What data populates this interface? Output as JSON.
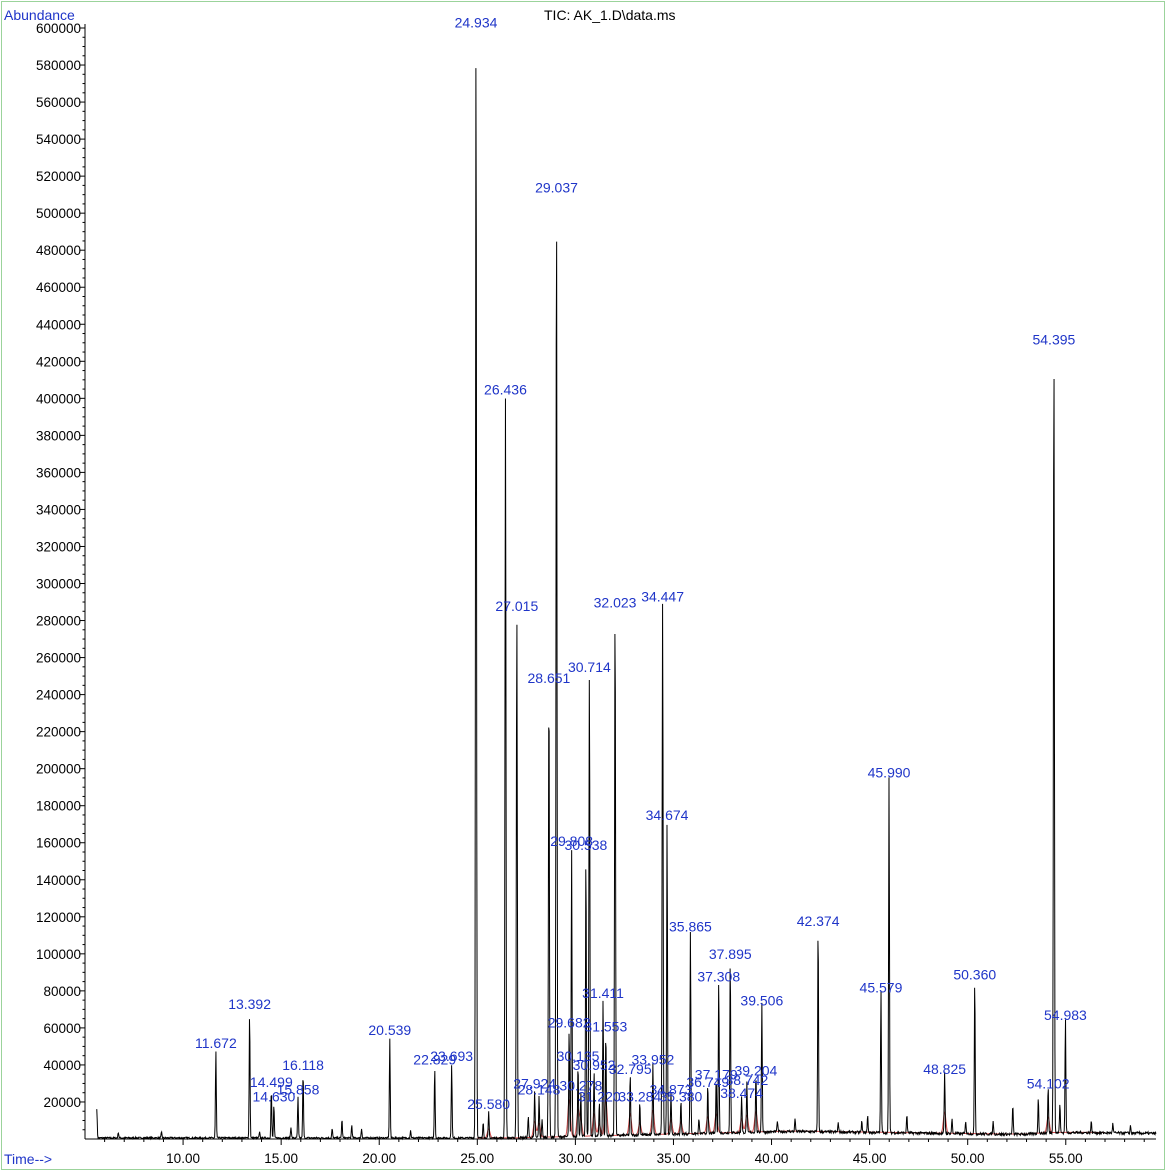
{
  "colors": {
    "frame": "#9bd39b",
    "axis_label": "#1f35c8",
    "peak_label": "#1f35c8",
    "trace": "#000000",
    "baseline": "#cc2222",
    "text": "#000000"
  },
  "chart_data": {
    "type": "line",
    "title": "TIC: AK_1.D\\data.ms",
    "xlabel": "Time-->",
    "ylabel": "Abundance",
    "xlim": [
      5.0,
      59.6
    ],
    "ylim": [
      0,
      600000
    ],
    "x_ticks": [
      10,
      15,
      20,
      25,
      30,
      35,
      40,
      45,
      50,
      55
    ],
    "x_tick_labels": [
      "10.00",
      "15.00",
      "20.00",
      "25.00",
      "30.00",
      "35.00",
      "40.00",
      "45.00",
      "50.00",
      "55.00"
    ],
    "y_ticks": [
      20000,
      40000,
      60000,
      80000,
      100000,
      120000,
      140000,
      160000,
      180000,
      200000,
      220000,
      240000,
      260000,
      280000,
      300000,
      320000,
      340000,
      360000,
      380000,
      400000,
      420000,
      440000,
      460000,
      480000,
      500000,
      520000,
      540000,
      560000,
      580000,
      600000
    ],
    "y_tick_labels": [
      "20000",
      "40000",
      "60000",
      "80000",
      "100000",
      "120000",
      "140000",
      "160000",
      "180000",
      "200000",
      "220000",
      "240000",
      "260000",
      "280000",
      "300000",
      "320000",
      "340000",
      "360000",
      "380000",
      "400000",
      "420000",
      "440000",
      "460000",
      "480000",
      "500000",
      "520000",
      "540000",
      "560000",
      "580000",
      "600000"
    ],
    "grid": false,
    "peaks": [
      {
        "label": "11.672",
        "x": 11.672,
        "y": 47000
      },
      {
        "label": "13.392",
        "x": 13.392,
        "y": 68000
      },
      {
        "label": "14.499",
        "x": 14.499,
        "y": 26000
      },
      {
        "label": "14.630",
        "x": 14.63,
        "y": 18000
      },
      {
        "label": "15.858",
        "x": 15.858,
        "y": 22000
      },
      {
        "label": "16.118",
        "x": 16.118,
        "y": 35000
      },
      {
        "label": "20.539",
        "x": 20.539,
        "y": 54000
      },
      {
        "label": "22.829",
        "x": 22.829,
        "y": 38000
      },
      {
        "label": "23.693",
        "x": 23.693,
        "y": 40000
      },
      {
        "label": "24.934",
        "x": 24.934,
        "y": 598000
      },
      {
        "label": "25.580",
        "x": 25.58,
        "y": 14000
      },
      {
        "label": "26.436",
        "x": 26.436,
        "y": 400000
      },
      {
        "label": "27.015",
        "x": 27.015,
        "y": 283000
      },
      {
        "label": "27.924",
        "x": 27.924,
        "y": 25000
      },
      {
        "label": "28.148",
        "x": 28.148,
        "y": 22000
      },
      {
        "label": "28.651",
        "x": 28.651,
        "y": 244000
      },
      {
        "label": "29.037",
        "x": 29.037,
        "y": 509000
      },
      {
        "label": "29.682",
        "x": 29.682,
        "y": 58000
      },
      {
        "label": "29.808",
        "x": 29.808,
        "y": 156000
      },
      {
        "label": "30.135",
        "x": 30.135,
        "y": 40000
      },
      {
        "label": "30.278",
        "x": 30.278,
        "y": 24000
      },
      {
        "label": "30.538",
        "x": 30.538,
        "y": 154000
      },
      {
        "label": "30.714",
        "x": 30.714,
        "y": 250000
      },
      {
        "label": "30.952",
        "x": 30.952,
        "y": 35000
      },
      {
        "label": "31.220",
        "x": 31.22,
        "y": 18000
      },
      {
        "label": "31.411",
        "x": 31.411,
        "y": 74000
      },
      {
        "label": "31.553",
        "x": 31.553,
        "y": 56000
      },
      {
        "label": "32.023",
        "x": 32.023,
        "y": 285000
      },
      {
        "label": "32.795",
        "x": 32.795,
        "y": 33000
      },
      {
        "label": "33.284",
        "x": 33.284,
        "y": 18000
      },
      {
        "label": "33.952",
        "x": 33.952,
        "y": 38000
      },
      {
        "label": "34.447",
        "x": 34.447,
        "y": 288000
      },
      {
        "label": "34.674",
        "x": 34.674,
        "y": 170000
      },
      {
        "label": "34.873",
        "x": 34.873,
        "y": 22000
      },
      {
        "label": "35.380",
        "x": 35.38,
        "y": 18000
      },
      {
        "label": "35.865",
        "x": 35.865,
        "y": 110000
      },
      {
        "label": "36.749",
        "x": 36.749,
        "y": 26000
      },
      {
        "label": "37.179",
        "x": 37.179,
        "y": 30000
      },
      {
        "label": "37.308",
        "x": 37.308,
        "y": 83000
      },
      {
        "label": "37.895",
        "x": 37.895,
        "y": 95000
      },
      {
        "label": "38.474",
        "x": 38.474,
        "y": 20000
      },
      {
        "label": "38.742",
        "x": 38.742,
        "y": 27000
      },
      {
        "label": "39.204",
        "x": 39.204,
        "y": 32000
      },
      {
        "label": "39.506",
        "x": 39.506,
        "y": 70000
      },
      {
        "label": "42.374",
        "x": 42.374,
        "y": 113000
      },
      {
        "label": "45.579",
        "x": 45.579,
        "y": 77000
      },
      {
        "label": "45.990",
        "x": 45.99,
        "y": 193000
      },
      {
        "label": "48.825",
        "x": 48.825,
        "y": 33000
      },
      {
        "label": "50.360",
        "x": 50.36,
        "y": 84000
      },
      {
        "label": "54.102",
        "x": 54.102,
        "y": 25000
      },
      {
        "label": "54.395",
        "x": 54.395,
        "y": 427000
      },
      {
        "label": "54.983",
        "x": 54.983,
        "y": 62000
      }
    ],
    "unlabeled_peaks": [
      {
        "x": 5.6,
        "y": 16000
      },
      {
        "x": 6.7,
        "y": 3000
      },
      {
        "x": 8.9,
        "y": 3000
      },
      {
        "x": 13.9,
        "y": 3000
      },
      {
        "x": 15.5,
        "y": 6000
      },
      {
        "x": 17.6,
        "y": 5000
      },
      {
        "x": 18.1,
        "y": 10000
      },
      {
        "x": 18.6,
        "y": 7000
      },
      {
        "x": 19.1,
        "y": 5000
      },
      {
        "x": 21.6,
        "y": 4000
      },
      {
        "x": 25.3,
        "y": 9000
      },
      {
        "x": 27.6,
        "y": 12000
      },
      {
        "x": 28.3,
        "y": 10000
      },
      {
        "x": 36.3,
        "y": 8000
      },
      {
        "x": 40.3,
        "y": 6000
      },
      {
        "x": 41.2,
        "y": 7000
      },
      {
        "x": 43.4,
        "y": 5000
      },
      {
        "x": 44.6,
        "y": 6000
      },
      {
        "x": 44.9,
        "y": 9000
      },
      {
        "x": 46.9,
        "y": 10000
      },
      {
        "x": 49.2,
        "y": 8000
      },
      {
        "x": 49.9,
        "y": 7000
      },
      {
        "x": 51.3,
        "y": 7000
      },
      {
        "x": 52.3,
        "y": 16000
      },
      {
        "x": 53.6,
        "y": 20000
      },
      {
        "x": 54.7,
        "y": 16000
      },
      {
        "x": 56.3,
        "y": 6000
      },
      {
        "x": 57.4,
        "y": 5000
      },
      {
        "x": 58.3,
        "y": 4000
      }
    ]
  }
}
